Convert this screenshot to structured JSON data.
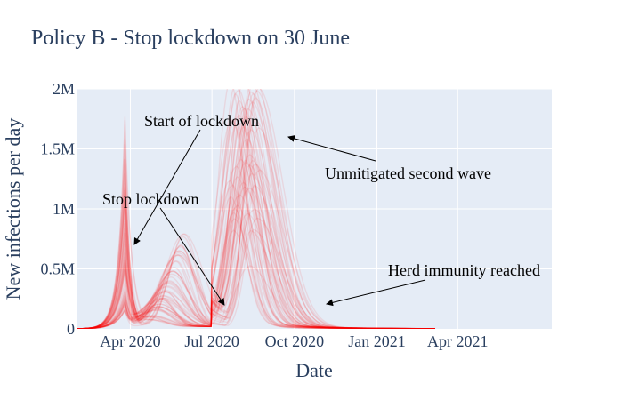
{
  "chart_data": {
    "type": "line",
    "title": "Policy B - Stop lockdown on 30 June",
    "xlabel": "Date",
    "ylabel": "New infections per day",
    "ylim": [
      0,
      2000000
    ],
    "xlim_days": [
      0,
      530
    ],
    "x_origin": "2020-02-01",
    "grid": true,
    "x_ticks": [
      {
        "label": "Apr 2020",
        "day": 60
      },
      {
        "label": "Jul 2020",
        "day": 151
      },
      {
        "label": "Oct 2020",
        "day": 243
      },
      {
        "label": "Jan 2021",
        "day": 335
      },
      {
        "label": "Apr 2021",
        "day": 425
      }
    ],
    "y_ticks": [
      {
        "label": "0",
        "value": 0
      },
      {
        "label": "0.5M",
        "value": 500000
      },
      {
        "label": "1M",
        "value": 1000000
      },
      {
        "label": "1.5M",
        "value": 1500000
      },
      {
        "label": "2M",
        "value": 2000000
      }
    ],
    "series_color": "#ff0000",
    "series_count": 60,
    "lockdown_start_day": 54,
    "lockdown_end_day": 151,
    "series_params": {
      "early_peak_min": 150000,
      "early_peak_max": 1800000,
      "second_peak_min": 400000,
      "second_peak_max": 2050000,
      "second_peak_day_min": 170,
      "second_peak_day_max": 205
    },
    "annotations": [
      {
        "text": "Start of lockdown",
        "arrow_to": {
          "day": 58,
          "value": 700000
        }
      },
      {
        "text": "Stop lockdown",
        "arrow_to": {
          "day": 148,
          "value": 200000
        }
      },
      {
        "text": "Unmitigated second wave",
        "arrow_to": {
          "day": 210,
          "value": 1600000
        }
      },
      {
        "text": "Herd immunity reached",
        "arrow_to": {
          "day": 248,
          "value": 200000
        }
      }
    ]
  }
}
